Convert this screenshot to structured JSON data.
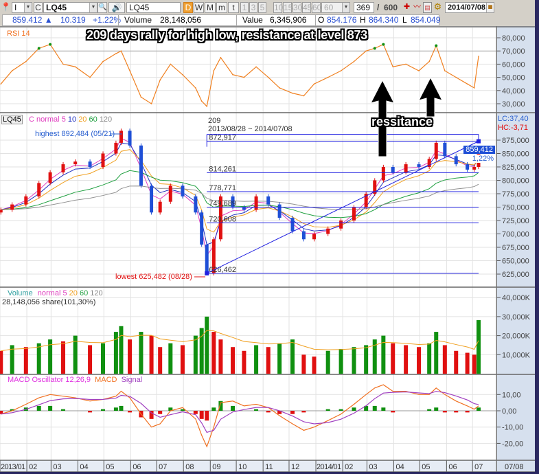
{
  "toolbar": {
    "type_value": "I",
    "c_label": "C",
    "symbol_value": "LQ45",
    "symbol_input": "LQ45",
    "periods": [
      "D",
      "W",
      "M",
      "m",
      "t"
    ],
    "minutes": [
      "1",
      "3",
      "5",
      "10",
      "15",
      "30",
      "45",
      "60"
    ],
    "minute_select": "60",
    "count_value": "369",
    "count_sep": "/",
    "count_total": "600",
    "date_value": "2014/07/08",
    "icons": [
      "pin-icon",
      "search-icon",
      "speaker-icon",
      "candle-tool-icon",
      "line-tool-icon",
      "chart-save-icon",
      "settings-gear-icon",
      "calendar-icon"
    ]
  },
  "info": {
    "price": "859.412 ▲",
    "change": "10.319",
    "change_pct": "+1.22%",
    "volume_label": "Volume",
    "volume": "28,148,056",
    "value_label": "Value",
    "value": "6,345,906",
    "open_label": "O",
    "open": "854.176",
    "high_label": "H",
    "high": "864.340",
    "low_label": "L",
    "low": "854.049"
  },
  "annotation": {
    "title": "209 days rally for high low, resistance at level 873",
    "resistance_label": "ressitance"
  },
  "rsi": {
    "label": "RSI 14",
    "axis": [
      "80,000",
      "70,000",
      "60,000",
      "50,000",
      "40,000",
      "30,000"
    ]
  },
  "price": {
    "symbol": "LQ45",
    "legend_c": "C",
    "legend_normal": "normal",
    "legend_ma": [
      "5",
      "10",
      "20",
      "60",
      "120"
    ],
    "highest": "highest 892,484 (05/21)",
    "lowest": "lowest 625,482 (08/28)",
    "fib_days": "209",
    "fib_range": "2013/08/28 ~ 2014/07/08",
    "fib_labels": [
      "872,917",
      "814,261",
      "778,771",
      "749,689",
      "720,608",
      "626,462"
    ],
    "lc": "LC:37,40",
    "hc": "HC:-3,71",
    "current": "859,412",
    "current_pct": "1,22%",
    "axis": [
      "875,000",
      "850,000",
      "825,000",
      "800,000",
      "775,000",
      "750,000",
      "725,000",
      "700,000",
      "675,000",
      "650,000",
      "625,000"
    ]
  },
  "volume": {
    "label": "Volume",
    "legend_normal": "normal",
    "legend_ma": [
      "5",
      "20",
      "60",
      "120"
    ],
    "summary": "28,148,056 share(101,30%)",
    "axis": [
      "40,000K",
      "30,000K",
      "20,000K",
      "10,000K"
    ]
  },
  "macd": {
    "label": "MACD Oscillator 12,26,9",
    "macd_label": "MACD",
    "signal_label": "Signal",
    "axis": [
      "10,00",
      "0,00",
      "-10,00",
      "-20,00"
    ]
  },
  "dates": {
    "months": [
      "2013/01",
      "02",
      "03",
      "04",
      "05",
      "06",
      "07",
      "08",
      "09",
      "10",
      "11",
      "12",
      "2014/01",
      "02",
      "03",
      "04",
      "05",
      "06",
      "07"
    ],
    "current": "07/08"
  },
  "colors": {
    "up": "#e01010",
    "down": "#1f4fd6",
    "ma5": "#e040c0",
    "ma10": "#2030c0",
    "ma20": "#f0a020",
    "ma60": "#20a040",
    "ma120": "#909090",
    "rsi": "#f08020",
    "vol_up": "#109010",
    "vol_down": "#e01010",
    "macd": "#f07020",
    "signal": "#a040c0",
    "fib": "#2020e0",
    "axis_bg": "#d6e0ee"
  },
  "chart_data": [
    {
      "type": "candlestick",
      "x": [
        "2013/01/02",
        "2013/01/15",
        "2013/01/31",
        "2013/02/15",
        "2013/02/28",
        "2013/03/15",
        "2013/03/29",
        "2013/04/15",
        "2013/04/30",
        "2013/05/15",
        "2013/05/21",
        "2013/05/31",
        "2013/06/13",
        "2013/06/25",
        "2013/07/05",
        "2013/07/17",
        "2013/07/31",
        "2013/08/15",
        "2013/08/22",
        "2013/08/28",
        "2013/09/05",
        "2013/09/13",
        "2013/09/27",
        "2013/10/10",
        "2013/10/24",
        "2013/11/07",
        "2013/11/20",
        "2013/12/05",
        "2013/12/18",
        "2013/12/30",
        "2014/01/15",
        "2014/01/30",
        "2014/02/14",
        "2014/02/28",
        "2014/03/10",
        "2014/03/20",
        "2014/03/31",
        "2014/04/15",
        "2014/04/30",
        "2014/05/12",
        "2014/05/20",
        "2014/05/30",
        "2014/06/12",
        "2014/06/25",
        "2014/07/03",
        "2014/07/08"
      ],
      "series": [
        {
          "name": "C",
          "values": [
            745000,
            755000,
            770000,
            795000,
            815000,
            830000,
            835000,
            825000,
            850000,
            870000,
            892484,
            865000,
            790000,
            740000,
            760000,
            790000,
            770000,
            740000,
            680000,
            626462,
            690000,
            770000,
            750000,
            745000,
            770000,
            755000,
            730000,
            705000,
            690000,
            700000,
            710000,
            725000,
            750000,
            775000,
            800000,
            825000,
            815000,
            830000,
            825000,
            840000,
            870000,
            845000,
            830000,
            820000,
            825000,
            859412
          ]
        }
      ],
      "fib_levels": [
        872917,
        814261,
        778771,
        749689,
        720608,
        626462
      ],
      "ylim": [
        610000,
        895000
      ]
    },
    {
      "type": "line",
      "title": "RSI 14",
      "series": [
        {
          "name": "RSI 14",
          "values": [
            45,
            55,
            62,
            72,
            75,
            60,
            58,
            50,
            62,
            68,
            70,
            55,
            35,
            30,
            48,
            60,
            52,
            42,
            32,
            28,
            55,
            65,
            52,
            50,
            58,
            50,
            42,
            38,
            36,
            45,
            50,
            55,
            62,
            70,
            72,
            75,
            58,
            60,
            55,
            62,
            74,
            55,
            50,
            45,
            42,
            66
          ]
        }
      ],
      "ylim": [
        25,
        85
      ]
    },
    {
      "type": "bar",
      "title": "Volume",
      "series": [
        {
          "name": "Volume",
          "values": [
            12000,
            15000,
            14000,
            16000,
            18000,
            17000,
            20000,
            15000,
            16000,
            22000,
            25000,
            18000,
            22000,
            20000,
            14000,
            16000,
            15000,
            20000,
            24000,
            30000,
            22000,
            18000,
            14000,
            12000,
            15000,
            14000,
            16000,
            18000,
            10000,
            9000,
            12000,
            13000,
            14000,
            15000,
            18000,
            20000,
            16000,
            15000,
            14000,
            16000,
            22000,
            15000,
            12000,
            11000,
            10000,
            28148
          ]
        }
      ],
      "ylim": [
        0,
        45000
      ]
    },
    {
      "type": "bar",
      "title": "MACD Oscillator 12,26,9",
      "series": [
        {
          "name": "MACD Oscillator 12,26,9",
          "values": [
            -2,
            1,
            2,
            3,
            3,
            1,
            0,
            -1,
            1,
            2,
            3,
            -1,
            -4,
            -5,
            -2,
            2,
            1,
            -2,
            -5,
            -6,
            2,
            6,
            3,
            0,
            1,
            -1,
            -2,
            -2,
            -1,
            0,
            1,
            1,
            2,
            3,
            3,
            2,
            -1,
            0,
            0,
            1,
            2,
            -1,
            -1,
            -1,
            0,
            2
          ]
        },
        {
          "name": "MACD",
          "values": [
            -2,
            0,
            4,
            8,
            10,
            9,
            8,
            6,
            7,
            9,
            12,
            8,
            -2,
            -10,
            -8,
            0,
            2,
            -5,
            -15,
            -22,
            -10,
            5,
            6,
            3,
            4,
            2,
            -3,
            -8,
            -12,
            -10,
            -6,
            -2,
            4,
            10,
            14,
            16,
            12,
            12,
            10,
            10,
            14,
            10,
            6,
            3,
            1,
            3
          ]
        }
      ],
      "ylim": [
        -25,
        15
      ]
    }
  ]
}
